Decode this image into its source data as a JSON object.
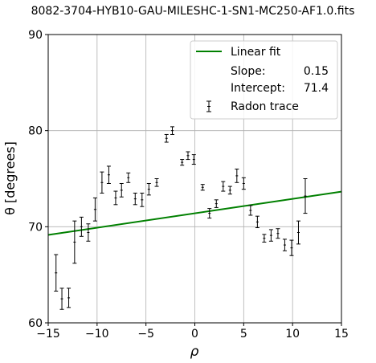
{
  "chart_data": {
    "type": "scatter",
    "title": "8082-3704-HYB10-GAU-MILESHC-1-SN1-MC250-AF1.0.fits",
    "xlabel": "ρ",
    "ylabel": "θ [degrees]",
    "xlim": [
      -15,
      15
    ],
    "ylim": [
      60,
      90
    ],
    "xticks": [
      "−15",
      "−10",
      "−5",
      "0",
      "5",
      "10",
      "15"
    ],
    "yticks": [
      "60",
      "70",
      "80",
      "90"
    ],
    "xtick_values": [
      -15,
      -10,
      -5,
      0,
      5,
      10,
      15
    ],
    "ytick_values": [
      60,
      70,
      80,
      90
    ],
    "grid": true,
    "legend_position": "top-right",
    "fit": {
      "name": "Linear fit",
      "color": "#008000",
      "slope": 0.15,
      "intercept": 71.4,
      "slope_label": "Slope:",
      "slope_text": "0.15",
      "intercept_label": "Intercept:",
      "intercept_text": "71.4"
    },
    "series": [
      {
        "name": "Radon trace",
        "color": "#000000",
        "points": [
          {
            "x": -14.2,
            "y": 65.2,
            "err": 1.9
          },
          {
            "x": -13.6,
            "y": 62.5,
            "err": 1.1
          },
          {
            "x": -12.9,
            "y": 62.6,
            "err": 1.0
          },
          {
            "x": -12.3,
            "y": 68.4,
            "err": 2.2
          },
          {
            "x": -11.6,
            "y": 70.0,
            "err": 1.0
          },
          {
            "x": -10.9,
            "y": 69.4,
            "err": 0.9
          },
          {
            "x": -10.2,
            "y": 71.8,
            "err": 1.2
          },
          {
            "x": -9.5,
            "y": 74.6,
            "err": 1.1
          },
          {
            "x": -8.8,
            "y": 75.4,
            "err": 0.9
          },
          {
            "x": -8.1,
            "y": 73.0,
            "err": 0.7
          },
          {
            "x": -7.5,
            "y": 73.8,
            "err": 0.7
          },
          {
            "x": -6.8,
            "y": 75.1,
            "err": 0.5
          },
          {
            "x": -6.1,
            "y": 72.9,
            "err": 0.6
          },
          {
            "x": -5.4,
            "y": 72.8,
            "err": 0.7
          },
          {
            "x": -4.7,
            "y": 73.9,
            "err": 0.6
          },
          {
            "x": -3.9,
            "y": 74.6,
            "err": 0.4
          },
          {
            "x": -2.9,
            "y": 79.2,
            "err": 0.4
          },
          {
            "x": -2.3,
            "y": 80.0,
            "err": 0.4
          },
          {
            "x": -1.3,
            "y": 76.7,
            "err": 0.3
          },
          {
            "x": -0.7,
            "y": 77.4,
            "err": 0.4
          },
          {
            "x": -0.1,
            "y": 77.0,
            "err": 0.5
          },
          {
            "x": 0.8,
            "y": 74.1,
            "err": 0.3
          },
          {
            "x": 1.5,
            "y": 71.4,
            "err": 0.5
          },
          {
            "x": 2.2,
            "y": 72.4,
            "err": 0.4
          },
          {
            "x": 2.9,
            "y": 74.2,
            "err": 0.5
          },
          {
            "x": 3.6,
            "y": 73.8,
            "err": 0.4
          },
          {
            "x": 4.3,
            "y": 75.3,
            "err": 0.7
          },
          {
            "x": 5.0,
            "y": 74.5,
            "err": 0.6
          },
          {
            "x": 5.7,
            "y": 71.7,
            "err": 0.5
          },
          {
            "x": 6.4,
            "y": 70.5,
            "err": 0.6
          },
          {
            "x": 7.1,
            "y": 68.8,
            "err": 0.4
          },
          {
            "x": 7.8,
            "y": 69.1,
            "err": 0.6
          },
          {
            "x": 8.5,
            "y": 69.3,
            "err": 0.5
          },
          {
            "x": 9.2,
            "y": 68.1,
            "err": 0.6
          },
          {
            "x": 9.9,
            "y": 67.8,
            "err": 0.8
          },
          {
            "x": 10.6,
            "y": 69.4,
            "err": 1.2
          },
          {
            "x": 11.3,
            "y": 73.2,
            "err": 1.8
          }
        ]
      }
    ]
  }
}
